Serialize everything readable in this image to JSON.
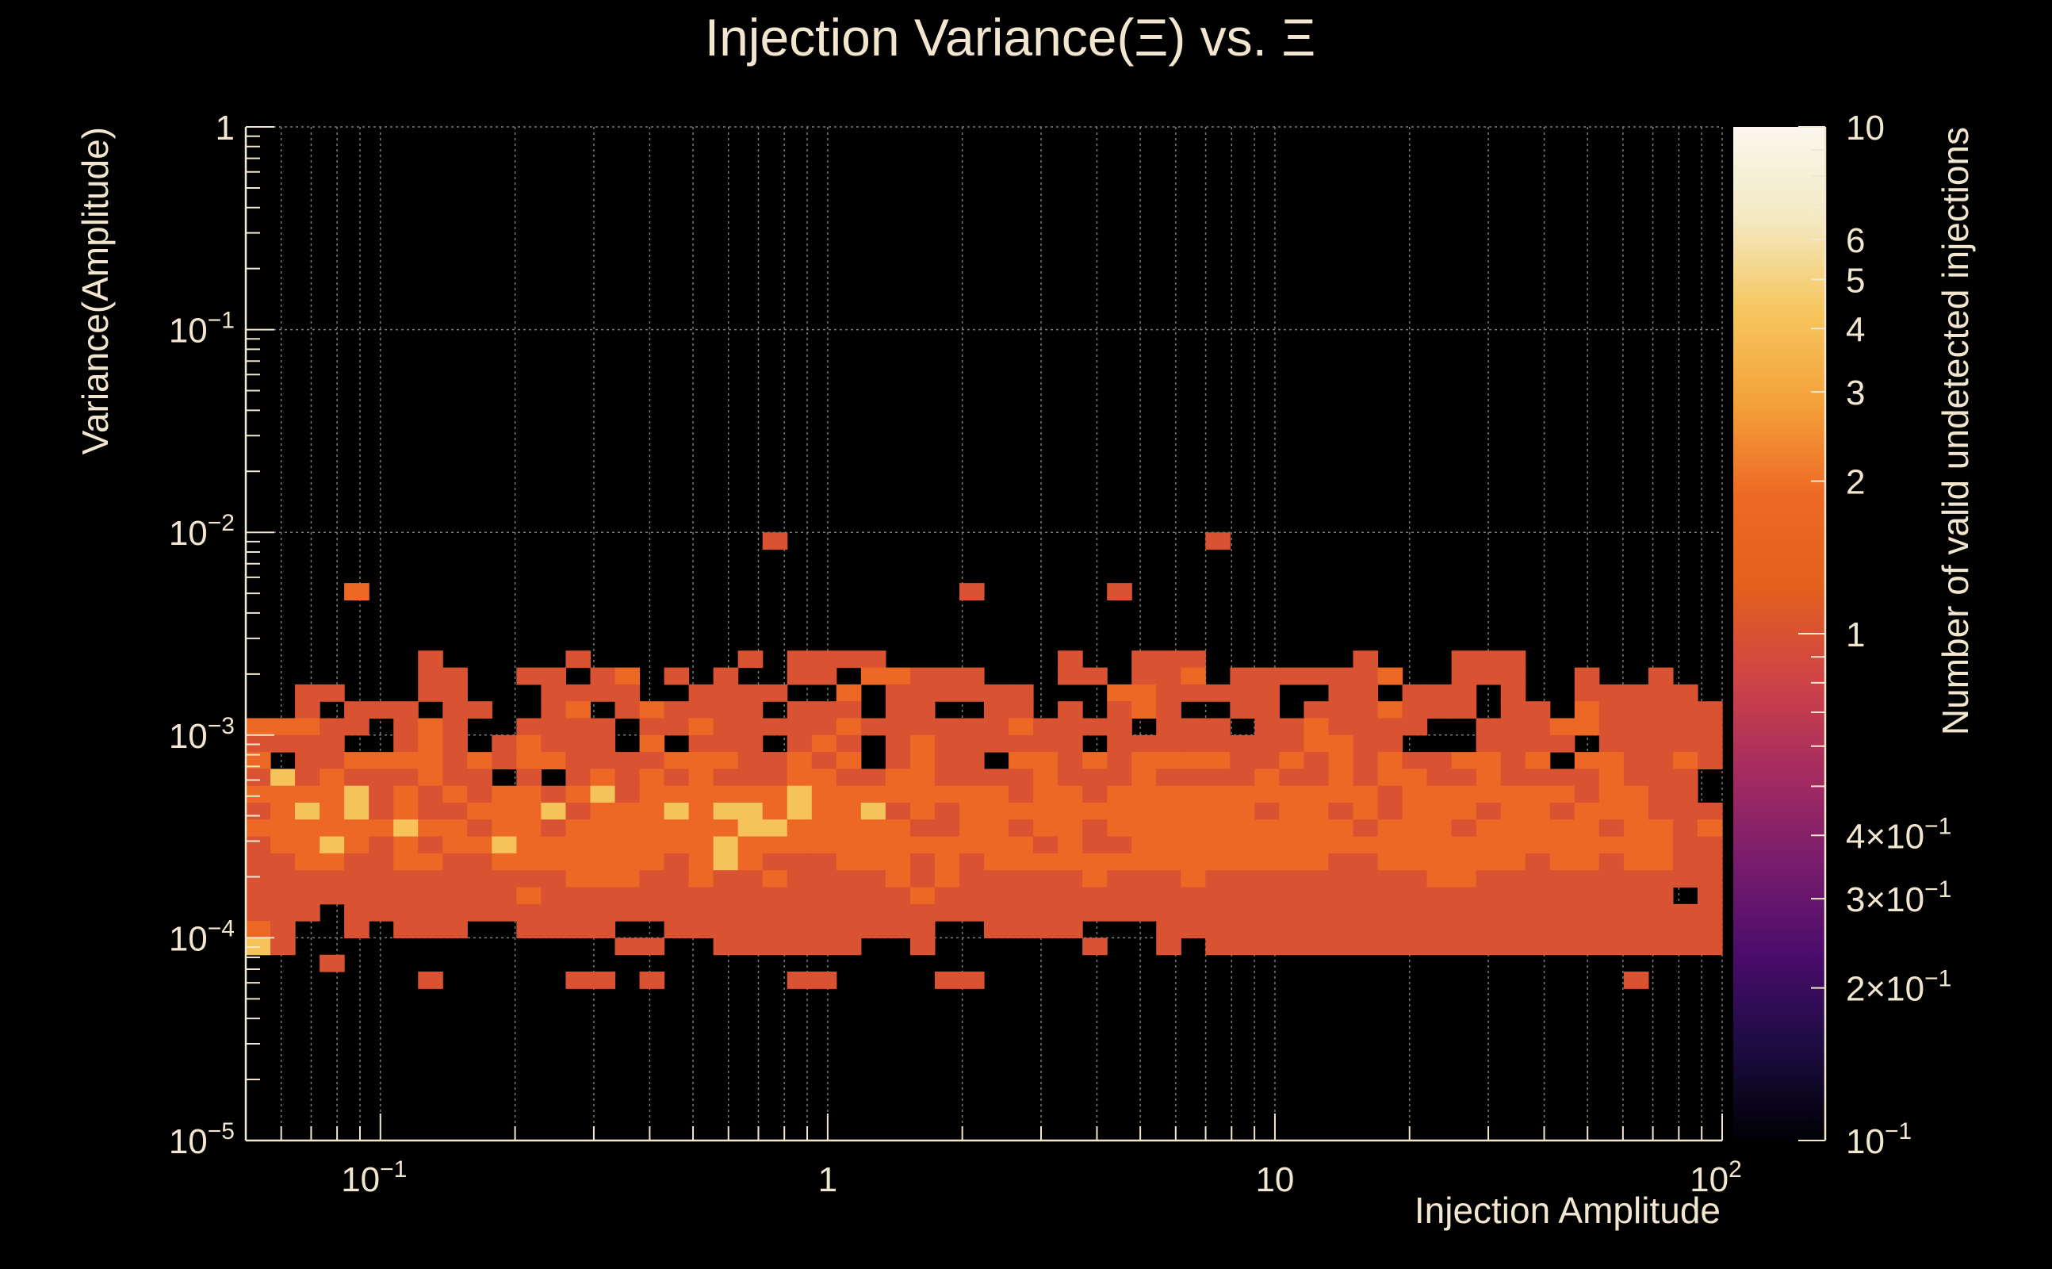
{
  "chart_data": {
    "type": "heatmap",
    "title": "Injection Variance(Ξ) vs. Ξ",
    "xlabel": "Injection Amplitude",
    "ylabel": "Variance(Amplitude)",
    "zlabel": "Number of valid undetected injections",
    "x_scale": "log",
    "y_scale": "log",
    "z_scale": "log",
    "xlim": [
      0.05,
      100
    ],
    "ylim": [
      1e-05,
      1
    ],
    "zlim": [
      0.1,
      10
    ],
    "grid": true,
    "colormap": [
      "#000004",
      "#1b0c41",
      "#4a0c6b",
      "#781c6d",
      "#a52c60",
      "#cf4446",
      "#e3601d",
      "#ed6925",
      "#f4a13a",
      "#f6c65e",
      "#f3e9c2",
      "#fbf7ee"
    ],
    "x_ticks": [
      {
        "value": 0.1,
        "base": "10",
        "exp": "−1"
      },
      {
        "value": 1,
        "base": "1",
        "exp": ""
      },
      {
        "value": 10,
        "base": "10",
        "exp": ""
      },
      {
        "value": 100,
        "base": "10",
        "exp": "2"
      }
    ],
    "y_ticks": [
      {
        "value": 1,
        "base": "1",
        "exp": ""
      },
      {
        "value": 0.1,
        "base": "10",
        "exp": "−1"
      },
      {
        "value": 0.01,
        "base": "10",
        "exp": "−2"
      },
      {
        "value": 0.001,
        "base": "10",
        "exp": "−3"
      },
      {
        "value": 0.0001,
        "base": "10",
        "exp": "−4"
      },
      {
        "value": 1e-05,
        "base": "10",
        "exp": "−5"
      }
    ],
    "z_ticks": [
      {
        "value": 10,
        "base": "10",
        "exp": ""
      },
      {
        "value": 6,
        "base": "6",
        "exp": ""
      },
      {
        "value": 5,
        "base": "5",
        "exp": ""
      },
      {
        "value": 4,
        "base": "4",
        "exp": ""
      },
      {
        "value": 3,
        "base": "3",
        "exp": ""
      },
      {
        "value": 2,
        "base": "2",
        "exp": ""
      },
      {
        "value": 1,
        "base": "1",
        "exp": ""
      },
      {
        "value": 0.4,
        "base": "4×10",
        "exp": "−1"
      },
      {
        "value": 0.3,
        "base": "3×10",
        "exp": "−1"
      },
      {
        "value": 0.2,
        "base": "2×10",
        "exp": "−1"
      },
      {
        "value": 0.1,
        "base": "10",
        "exp": "−1"
      }
    ],
    "bins": {
      "x_bins": 60,
      "y_bins": 60,
      "x_range": [
        0.05,
        100
      ],
      "y_range": [
        1e-05,
        1
      ],
      "rows_top_to_bottom_from": 0.01,
      "rows": [
        "0000000000000000000001000000000000000001000000000000000000000000",
        "0000000000000000000000000000000000000000000000000000000000000000",
        "0000000000000000000000000000000000000000000000000000000000000000",
        "000020000000000000000000000001000001000000000000000000000000000",
        "0000000000000000000000000000000000000000000000000000000000000000",
        "0000000000000000000000000000000000000000000000000000000000000000",
        "0000000000000000000000000000000000000000000000000000000000000000",
        "0000000100000100000010111100000001001110000001000111000000000000",
        "0000000110011012010100110221110001101120111111200111001001000000",
        "0011000110001111001111002011111100022111110011011101001111100000",
        "0010111011001201211110111011001101012100110111211101102111110000",
        "2221101210011110112111112111111211110111011211110011122111110000",
        "1111001210121110201110121012111111011111111221100011110111110000",
        "2011222212122111122211212012110221212222112121211221202211210000",
        "1312111211010121212111221122111121112111121121221121111211100000",
        "2222312121221231222222322222222122122222222222122222221221100000",
        "1232312112223122232332322312122222222222212212122212212221110000",
        "2222223221221222222233222221122122122222222221222122222122120000",
        "1223212122322222222322222222222212112222222222222222222222110000",
        "1122112211222222212321112221212222222222222211222222122122110000",
        "1111111111111222112112111121211111211121111111112211111111110000",
        "1111111111121111111111111112111111111111111111111111111111010000",
        "1110111111111111111111111111111111111111111111111111111111110000",
        "2100101110011110011111111111001111000111111111111111111111110000",
        "3100000000000001100111111001000000100101111111111111111111110000",
        "0001000000000000000000000000000000000000000000000000000000000000",
        "0000000100000110100000110000110000000000000000000000000010000000",
        "0000000000000000000000000000000000000000000000000000000000000000",
        "0000000000000000000000000000000000000000000000000000000000000000",
        "0000000000000000000000000000000000000000000000000000000000000000",
        "0000000000000000000000000000000000000000000000000000000000000000",
        "0000000000000000000000000000000000000000000000000000000000000000"
      ]
    }
  }
}
